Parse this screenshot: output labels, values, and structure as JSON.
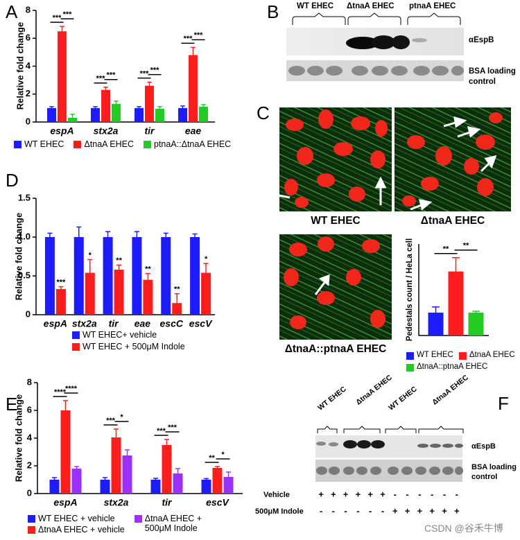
{
  "panel_labels": [
    "A",
    "B",
    "C",
    "D",
    "E",
    "F"
  ],
  "chart_data": [
    {
      "type": "bar",
      "ylabel": "Relative fold change",
      "categories": [
        "espA",
        "stx2a",
        "tir",
        "eae"
      ],
      "series": [
        {
          "name": "WT EHEC",
          "color": "#1c1cff",
          "values": [
            1,
            1,
            1,
            1
          ],
          "errors": [
            0.1,
            0.1,
            0.1,
            0.15
          ]
        },
        {
          "name": "ΔtnaA EHEC",
          "color": "#ff1c1c",
          "values": [
            6.5,
            2.3,
            2.6,
            4.8
          ],
          "errors": [
            0.35,
            0.2,
            0.25,
            0.55
          ]
        },
        {
          "name": "ptnaA::ΔtnaA EHEC",
          "color": "#22cc22",
          "values": [
            0.3,
            1.3,
            0.95,
            1.1
          ],
          "errors": [
            0.25,
            0.2,
            0.15,
            0.15
          ]
        }
      ],
      "ylim": [
        0,
        8
      ],
      "yticks": [
        0,
        2,
        4,
        6,
        8
      ],
      "significance": [
        {
          "category": 0,
          "series": [
            0,
            1
          ],
          "label": "***"
        },
        {
          "category": 0,
          "series": [
            1,
            2
          ],
          "label": "***"
        },
        {
          "category": 1,
          "series": [
            0,
            1
          ],
          "label": "***"
        },
        {
          "category": 1,
          "series": [
            1,
            2
          ],
          "label": "***"
        },
        {
          "category": 2,
          "series": [
            0,
            1
          ],
          "label": "***"
        },
        {
          "category": 2,
          "series": [
            1,
            2
          ],
          "label": "***"
        },
        {
          "category": 3,
          "series": [
            0,
            1
          ],
          "label": "***"
        },
        {
          "category": 3,
          "series": [
            1,
            2
          ],
          "label": "***"
        }
      ]
    },
    {
      "type": "bar",
      "ylabel": "Pedestals count / HeLa cell",
      "categories": [
        null
      ],
      "series": [
        {
          "name": "WT EHEC",
          "color": "#1c1cff",
          "values": [
            1
          ],
          "errors": [
            0.25
          ]
        },
        {
          "name": "ΔtnaA EHEC",
          "color": "#ff1c1c",
          "values": [
            2.8
          ],
          "errors": [
            0.6
          ]
        },
        {
          "name": "ΔtnaA::ptnaA EHEC",
          "color": "#22cc22",
          "values": [
            1
          ],
          "errors": [
            0.06
          ]
        }
      ],
      "ylim": [
        0,
        4
      ],
      "significance": [
        {
          "category": 0,
          "series": [
            0,
            1
          ],
          "label": "**"
        },
        {
          "category": 0,
          "series": [
            1,
            2
          ],
          "label": "**"
        }
      ]
    },
    {
      "type": "bar",
      "ylabel": "Relative fold change",
      "categories": [
        "espA",
        "stx2a",
        "tir",
        "eae",
        "escC",
        "escV"
      ],
      "series": [
        {
          "name": "WT EHEC+ vehicle",
          "color": "#1c1cff",
          "values": [
            1,
            1,
            1,
            1,
            1,
            1
          ],
          "errors": [
            0.05,
            0.13,
            0.07,
            0.07,
            0.05,
            0.04
          ]
        },
        {
          "name": "WT EHEC + 500μM Indole",
          "color": "#ff1c1c",
          "values": [
            0.33,
            0.54,
            0.58,
            0.45,
            0.15,
            0.54
          ],
          "errors": [
            0.03,
            0.17,
            0.06,
            0.08,
            0.12,
            0.12
          ]
        }
      ],
      "ylim": [
        0,
        1.5
      ],
      "yticks": [
        0,
        0.5,
        {
          "value": 1,
          "label": "1.0"
        },
        1.5
      ],
      "significance": [
        {
          "category": 0,
          "series": [
            1
          ],
          "label": "***"
        },
        {
          "category": 1,
          "series": [
            1
          ],
          "label": "*"
        },
        {
          "category": 2,
          "series": [
            1
          ],
          "label": "**"
        },
        {
          "category": 3,
          "series": [
            1
          ],
          "label": "**"
        },
        {
          "category": 4,
          "series": [
            1
          ],
          "label": "**"
        },
        {
          "category": 5,
          "series": [
            1
          ],
          "label": "*"
        }
      ]
    },
    {
      "type": "bar",
      "ylabel": "Relative fold change",
      "categories": [
        "espA",
        "stx2a",
        "tir",
        "escV"
      ],
      "series": [
        {
          "name": "WT EHEC + vehicle",
          "color": "#1c1cff",
          "values": [
            1,
            1,
            1,
            1
          ],
          "errors": [
            0.15,
            0.15,
            0.1,
            0.08
          ]
        },
        {
          "name": "ΔtnaA EHEC + vehicle",
          "color": "#ff1c1c",
          "values": [
            6,
            4.05,
            3.5,
            1.85
          ],
          "errors": [
            0.7,
            0.6,
            0.4,
            0.1
          ]
        },
        {
          "name": "ΔtnaA EHEC + 500μM Indole",
          "color": "#9b30ff",
          "values": [
            1.8,
            2.75,
            1.45,
            1.2
          ],
          "errors": [
            0.15,
            0.4,
            0.35,
            0.35
          ]
        }
      ],
      "ylim": [
        0,
        8
      ],
      "yticks": [
        0,
        2,
        4,
        6,
        8
      ],
      "significance": [
        {
          "category": 0,
          "series": [
            0,
            1
          ],
          "label": "****"
        },
        {
          "category": 0,
          "series": [
            1,
            2
          ],
          "label": "****"
        },
        {
          "category": 1,
          "series": [
            0,
            1
          ],
          "label": "***"
        },
        {
          "category": 1,
          "series": [
            1,
            2
          ],
          "label": "*"
        },
        {
          "category": 2,
          "series": [
            0,
            1
          ],
          "label": "***"
        },
        {
          "category": 2,
          "series": [
            1,
            2
          ],
          "label": "***"
        },
        {
          "category": 3,
          "series": [
            0,
            1
          ],
          "label": "**"
        },
        {
          "category": 3,
          "series": [
            1,
            2
          ],
          "label": "*"
        }
      ]
    }
  ],
  "blot_B": {
    "lanes": [
      "WT EHEC",
      "ΔtnaA EHEC",
      "ptnaA EHEC"
    ],
    "bands": [
      "αEspB",
      "BSA loading control"
    ]
  },
  "images_C": {
    "labels": [
      "WT EHEC",
      "ΔtnaA EHEC",
      "ΔtnaA::ptnaA EHEC"
    ]
  },
  "blot_F": {
    "lanes": [
      "WT EHEC",
      "ΔtnaA EHEC",
      "WT EHEC",
      "ΔtnaA EHEC"
    ],
    "bands": [
      "αEspB",
      "BSA loading control"
    ],
    "treatments": [
      {
        "name": "Vehicle",
        "signs": [
          "+",
          "+",
          "+",
          "+",
          "+",
          "+",
          "-",
          "-",
          "-",
          "-",
          "-",
          "-"
        ]
      },
      {
        "name": "500μM Indole",
        "signs": [
          "-",
          "-",
          "-",
          "-",
          "-",
          "-",
          "+",
          "+",
          "+",
          "+",
          "+",
          "+"
        ]
      }
    ]
  },
  "watermark": "CSDN @谷禾牛博"
}
